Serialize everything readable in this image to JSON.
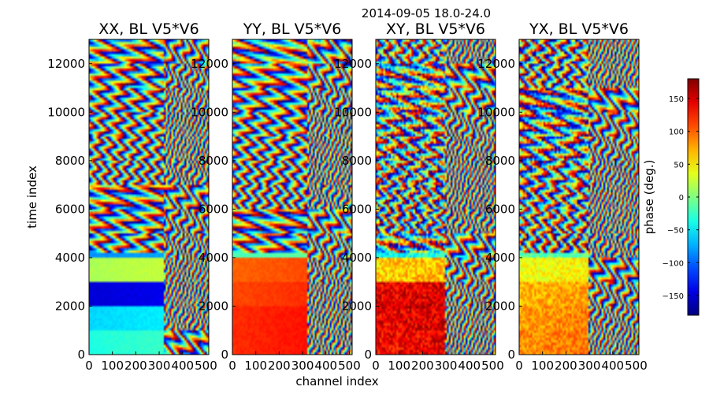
{
  "chart_data": {
    "type": "heatmap",
    "suptitle": "2014-09-05 18.0-24.0",
    "xlabel": "channel index",
    "ylabel": "time index",
    "xlim": [
      0,
      512
    ],
    "ylim": [
      0,
      13000
    ],
    "x_ticks": [
      0,
      100,
      200,
      300,
      400,
      500
    ],
    "x_tick_labels": [
      "0",
      "100",
      "200",
      "300",
      "400",
      "500"
    ],
    "y_ticks": [
      0,
      2000,
      4000,
      6000,
      8000,
      10000,
      12000
    ],
    "y_tick_labels": [
      "0",
      "2000",
      "4000",
      "6000",
      "8000",
      "10000",
      "12000"
    ],
    "panels": [
      {
        "title": "XX, BL V5*V6",
        "base_phase": [
          -35,
          -60,
          -150,
          15,
          -85,
          -5,
          -55,
          -75,
          -110,
          150,
          -110,
          -60,
          -45
        ],
        "flat_below_channel": 320,
        "noise": 10
      },
      {
        "title": "YY, BL V5*V6",
        "base_phase": [
          120,
          120,
          110,
          100,
          -20,
          55,
          90,
          110,
          120,
          -150,
          120,
          100,
          95
        ],
        "flat_below_channel": 320,
        "noise": 10
      },
      {
        "title": "XY, BL V5*V6",
        "base_phase": [
          135,
          140,
          140,
          60,
          -40,
          80,
          120,
          150,
          100,
          -170,
          155,
          130,
          120
        ],
        "flat_below_channel": 300,
        "noise": 60
      },
      {
        "title": "YX, BL V5*V6",
        "base_phase": [
          85,
          80,
          70,
          40,
          -20,
          30,
          50,
          70,
          75,
          110,
          80,
          60,
          55
        ],
        "flat_below_channel": 300,
        "noise": 45
      }
    ],
    "colorbar": {
      "label": "phase (deg.)",
      "range": [
        -180,
        180
      ],
      "ticks": [
        150,
        100,
        50,
        0,
        -50,
        -100,
        -150
      ],
      "tick_labels": [
        "150",
        "100",
        "50",
        "0",
        "−50",
        "−100",
        "−150"
      ]
    },
    "colormap": "jet"
  }
}
